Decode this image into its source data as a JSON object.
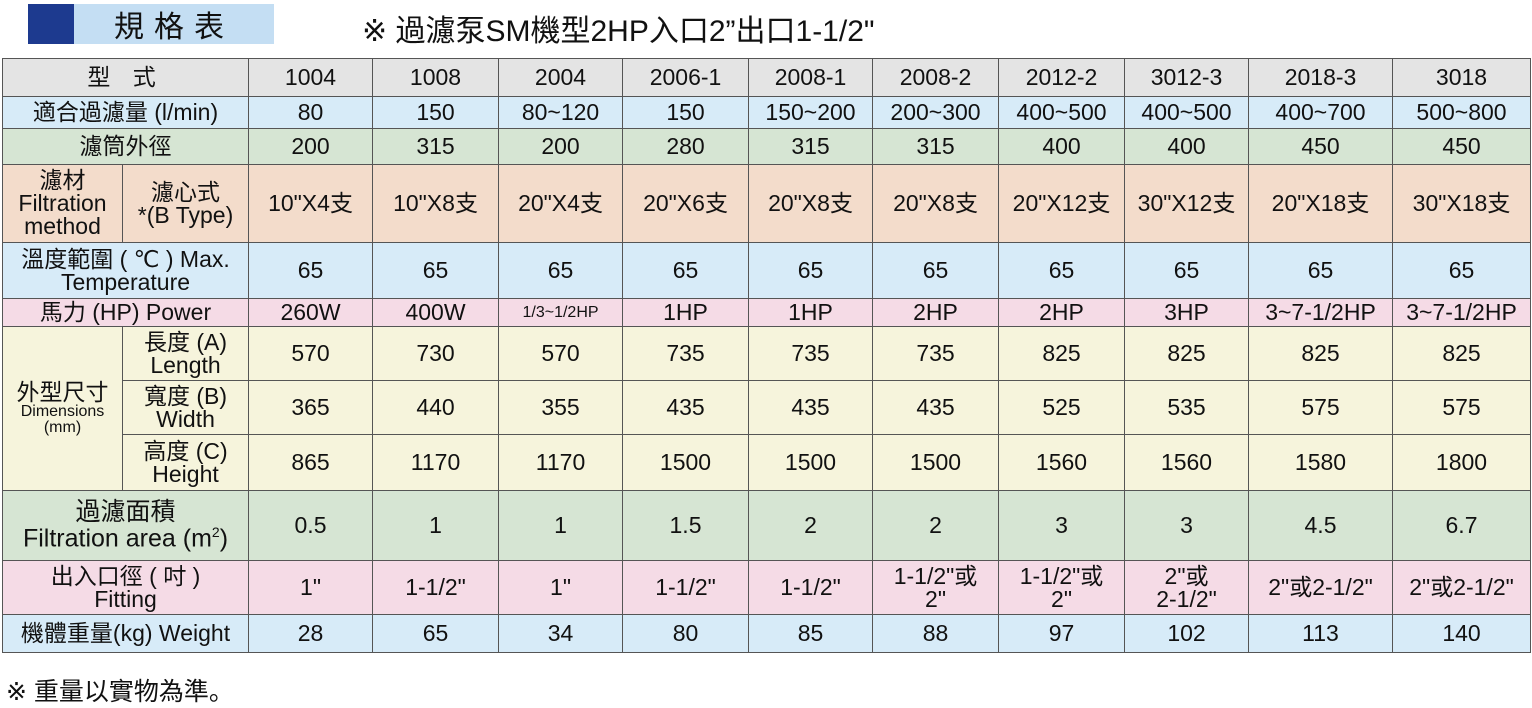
{
  "header": {
    "label": "規格表",
    "title": "※ 過濾泵SM機型2HP入口2”出口1-1/2\""
  },
  "table": {
    "model_label": "型 式",
    "models": [
      "1004",
      "1008",
      "2004",
      "2006-1",
      "2008-1",
      "2008-2",
      "2012-2",
      "3012-3",
      "2018-3",
      "3018"
    ],
    "flow": {
      "label": "適合過濾量 (l/min)",
      "values": [
        "80",
        "150",
        "80~120",
        "150",
        "150~200",
        "200~300",
        "400~500",
        "400~500",
        "400~700",
        "500~800"
      ]
    },
    "diameter": {
      "label": "濾筒外徑",
      "values": [
        "200",
        "315",
        "200",
        "280",
        "315",
        "315",
        "400",
        "400",
        "450",
        "450"
      ]
    },
    "filter": {
      "label_l1": "濾材",
      "label_l2": "Filtration",
      "label_l3": "method",
      "sub_l1": "濾心式",
      "sub_l2": "*(B Type)",
      "values": [
        "10\"X4支",
        "10\"X8支",
        "20\"X4支",
        "20\"X6支",
        "20\"X8支",
        "20\"X8支",
        "20\"X12支",
        "30\"X12支",
        "20\"X18支",
        "30\"X18支"
      ]
    },
    "temp": {
      "label_l1": "溫度範圍 ( ℃ ) Max.",
      "label_l2": "Temperature",
      "values": [
        "65",
        "65",
        "65",
        "65",
        "65",
        "65",
        "65",
        "65",
        "65",
        "65"
      ]
    },
    "power": {
      "label": "馬力 (HP) Power",
      "values": [
        "260W",
        "400W",
        "1/3~1/2HP",
        "1HP",
        "1HP",
        "2HP",
        "2HP",
        "3HP",
        "3~7-1/2HP",
        "3~7-1/2HP"
      ]
    },
    "dims": {
      "label_l1": "外型尺寸",
      "label_l2": "Dimensions",
      "label_l3": "(mm)",
      "length": {
        "l1": "長度 (A)",
        "l2": "Length",
        "values": [
          "570",
          "730",
          "570",
          "735",
          "735",
          "735",
          "825",
          "825",
          "825",
          "825"
        ]
      },
      "width": {
        "l1": "寬度 (B)",
        "l2": "Width",
        "values": [
          "365",
          "440",
          "355",
          "435",
          "435",
          "435",
          "525",
          "535",
          "575",
          "575"
        ]
      },
      "height": {
        "l1": "高度 (C)",
        "l2": "Height",
        "values": [
          "865",
          "1170",
          "1170",
          "1500",
          "1500",
          "1500",
          "1560",
          "1560",
          "1580",
          "1800"
        ]
      }
    },
    "area": {
      "label_l1": "過濾面積",
      "label_l2": "Filtration area (m",
      "label_sup": "2",
      "label_end": ")",
      "values": [
        "0.5",
        "1",
        "1",
        "1.5",
        "2",
        "2",
        "3",
        "3",
        "4.5",
        "6.7"
      ]
    },
    "fitting": {
      "label_l1": "出入口徑 ( 吋 )",
      "label_l2": "Fitting",
      "values": [
        [
          "1\""
        ],
        [
          "1-1/2\""
        ],
        [
          "1\""
        ],
        [
          "1-1/2\""
        ],
        [
          "1-1/2\""
        ],
        [
          "1-1/2\"或",
          "2\""
        ],
        [
          "1-1/2\"或",
          "2\""
        ],
        [
          "2\"或",
          "2-1/2\""
        ],
        [
          "2\"或2-1/2\""
        ],
        [
          "2\"或2-1/2\""
        ]
      ]
    },
    "weight": {
      "label": "機體重量(kg) Weight",
      "values": [
        "28",
        "65",
        "34",
        "80",
        "85",
        "88",
        "97",
        "102",
        "113",
        "140"
      ]
    }
  },
  "footnote": "※ 重量以實物為準。"
}
